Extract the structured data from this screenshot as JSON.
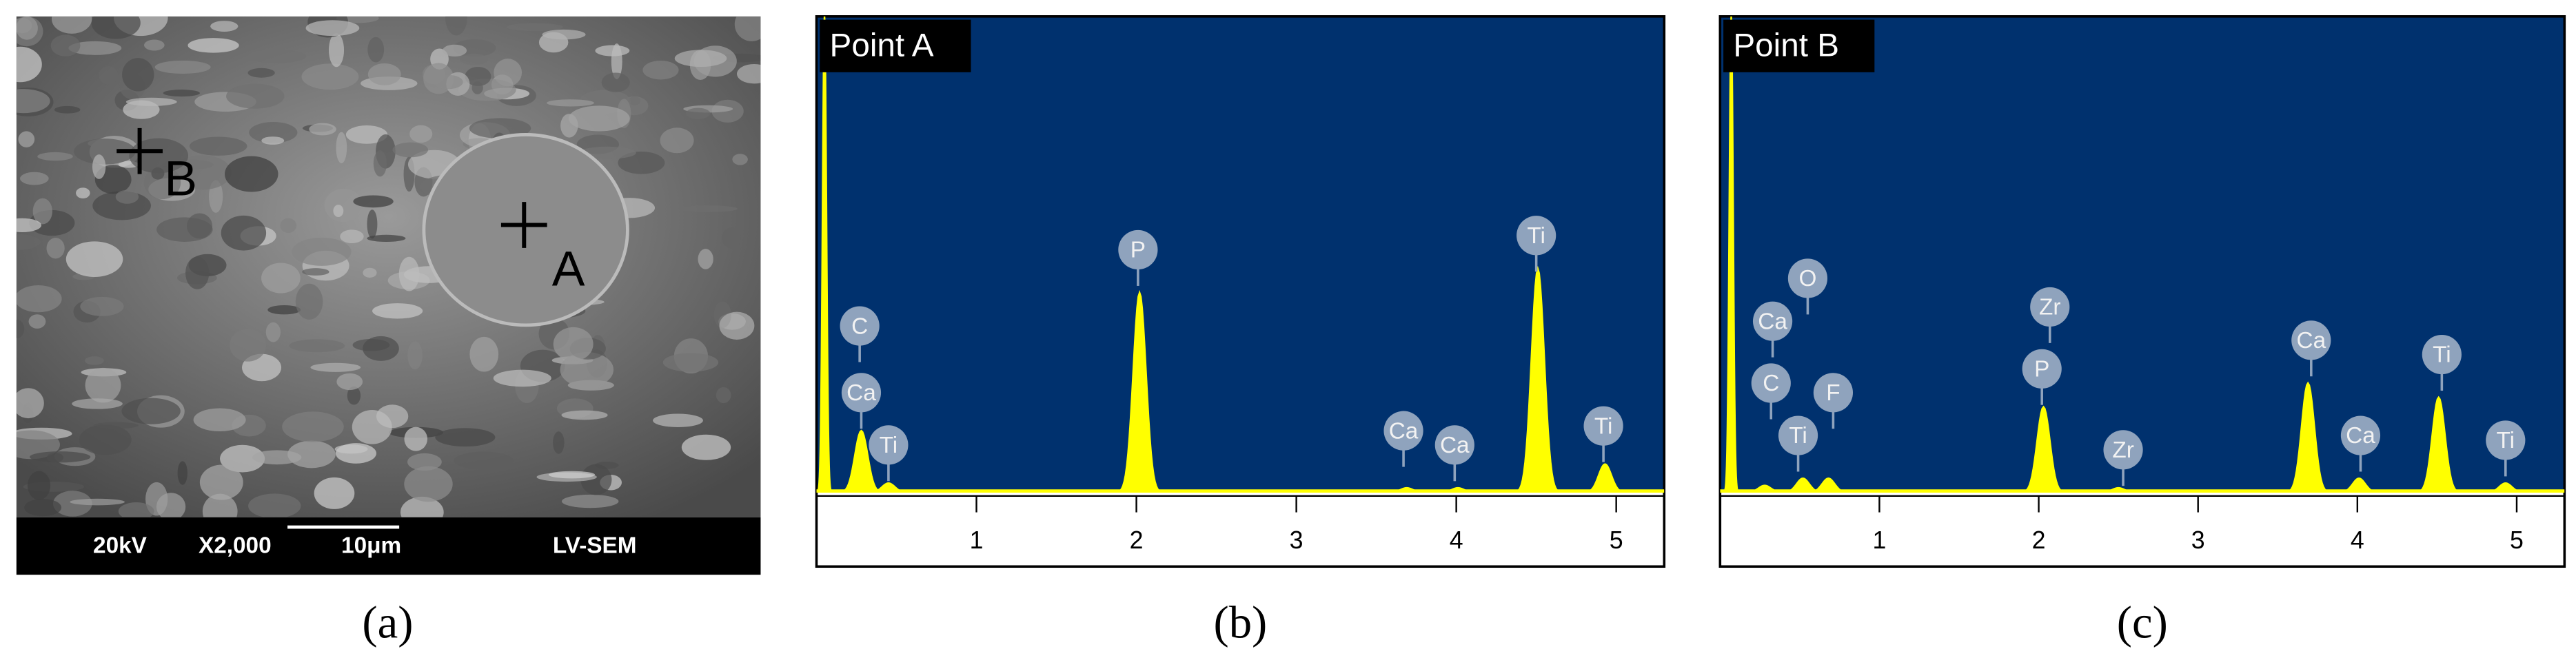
{
  "sem": {
    "bar_labels": [
      "20kV",
      "X2,000",
      "10μm",
      "LV-SEM"
    ],
    "points": [
      "A",
      "B"
    ],
    "caption": "(a)"
  },
  "chart_data": [
    {
      "type": "spectrum",
      "title": "Point A",
      "caption": "(b)",
      "xlim": [
        0,
        5.3
      ],
      "xticks": [
        1,
        2,
        3,
        4,
        5
      ],
      "ylim": [
        0,
        100
      ],
      "background": "#00316e",
      "color": "#ffff00",
      "series": [
        {
          "x": [
            0.05,
            0.28,
            0.45,
            2.02,
            3.69,
            4.01,
            4.51,
            4.93
          ],
          "values": [
            100,
            13,
            2,
            42,
            1,
            1,
            47,
            6
          ]
        }
      ],
      "annotations": [
        {
          "text": "C",
          "x": 0.27,
          "y": 35
        },
        {
          "text": "Ca",
          "x": 0.28,
          "y": 21
        },
        {
          "text": "Ti",
          "x": 0.45,
          "y": 10
        },
        {
          "text": "P",
          "x": 2.01,
          "y": 51
        },
        {
          "text": "Ca",
          "x": 3.67,
          "y": 13
        },
        {
          "text": "Ca",
          "x": 3.99,
          "y": 10
        },
        {
          "text": "Ti",
          "x": 4.5,
          "y": 54
        },
        {
          "text": "Ti",
          "x": 4.92,
          "y": 14
        }
      ]
    },
    {
      "type": "spectrum",
      "title": "Point B",
      "caption": "(c)",
      "xlim": [
        0,
        5.3
      ],
      "xticks": [
        1,
        2,
        3,
        4,
        5
      ],
      "ylim": [
        0,
        100
      ],
      "background": "#00316e",
      "color": "#ffff00",
      "series": [
        {
          "x": [
            0.07,
            0.28,
            0.52,
            0.68,
            2.03,
            2.5,
            3.69,
            4.01,
            4.51,
            4.93
          ],
          "values": [
            100,
            1.5,
            3,
            3,
            18,
            1,
            23,
            3,
            20,
            2
          ]
        }
      ],
      "annotations": [
        {
          "text": "Ca",
          "x": 0.33,
          "y": 36
        },
        {
          "text": "O",
          "x": 0.55,
          "y": 45
        },
        {
          "text": "C",
          "x": 0.32,
          "y": 23
        },
        {
          "text": "Ti",
          "x": 0.49,
          "y": 12
        },
        {
          "text": "F",
          "x": 0.71,
          "y": 21
        },
        {
          "text": "Zr",
          "x": 2.07,
          "y": 39
        },
        {
          "text": "P",
          "x": 2.02,
          "y": 26
        },
        {
          "text": "Zr",
          "x": 2.53,
          "y": 9
        },
        {
          "text": "Ca",
          "x": 3.71,
          "y": 32
        },
        {
          "text": "Ca",
          "x": 4.02,
          "y": 12
        },
        {
          "text": "Ti",
          "x": 4.53,
          "y": 29
        },
        {
          "text": "Ti",
          "x": 4.93,
          "y": 11
        }
      ]
    }
  ]
}
